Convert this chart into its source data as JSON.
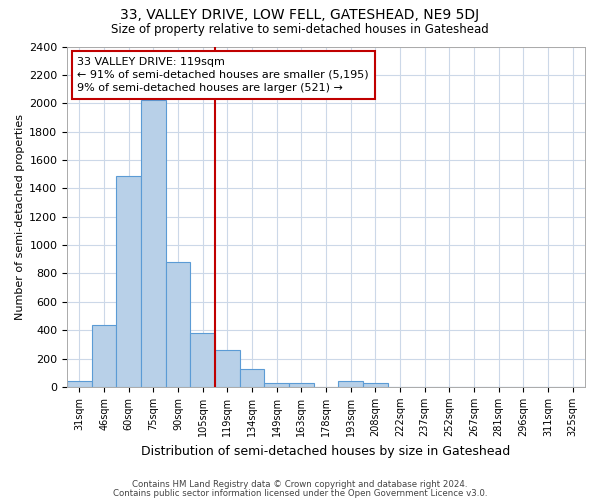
{
  "title": "33, VALLEY DRIVE, LOW FELL, GATESHEAD, NE9 5DJ",
  "subtitle": "Size of property relative to semi-detached houses in Gateshead",
  "xlabel": "Distribution of semi-detached houses by size in Gateshead",
  "ylabel": "Number of semi-detached properties",
  "categories": [
    "31sqm",
    "46sqm",
    "60sqm",
    "75sqm",
    "90sqm",
    "105sqm",
    "119sqm",
    "134sqm",
    "149sqm",
    "163sqm",
    "178sqm",
    "193sqm",
    "208sqm",
    "222sqm",
    "237sqm",
    "252sqm",
    "267sqm",
    "281sqm",
    "296sqm",
    "311sqm",
    "325sqm"
  ],
  "values": [
    40,
    440,
    1490,
    2020,
    880,
    380,
    260,
    130,
    30,
    30,
    0,
    40,
    30,
    0,
    0,
    0,
    0,
    0,
    0,
    0,
    0
  ],
  "bar_color": "#b8d0e8",
  "bar_edge_color": "#5b9bd5",
  "highlight_index": 6,
  "highlight_line_color": "#c00000",
  "annotation_text": "33 VALLEY DRIVE: 119sqm\n← 91% of semi-detached houses are smaller (5,195)\n9% of semi-detached houses are larger (521) →",
  "annotation_box_color": "#ffffff",
  "annotation_box_edge_color": "#c00000",
  "ylim": [
    0,
    2400
  ],
  "yticks": [
    0,
    200,
    400,
    600,
    800,
    1000,
    1200,
    1400,
    1600,
    1800,
    2000,
    2200,
    2400
  ],
  "footer_line1": "Contains HM Land Registry data © Crown copyright and database right 2024.",
  "footer_line2": "Contains public sector information licensed under the Open Government Licence v3.0.",
  "background_color": "#ffffff",
  "grid_color": "#ccd8e8"
}
